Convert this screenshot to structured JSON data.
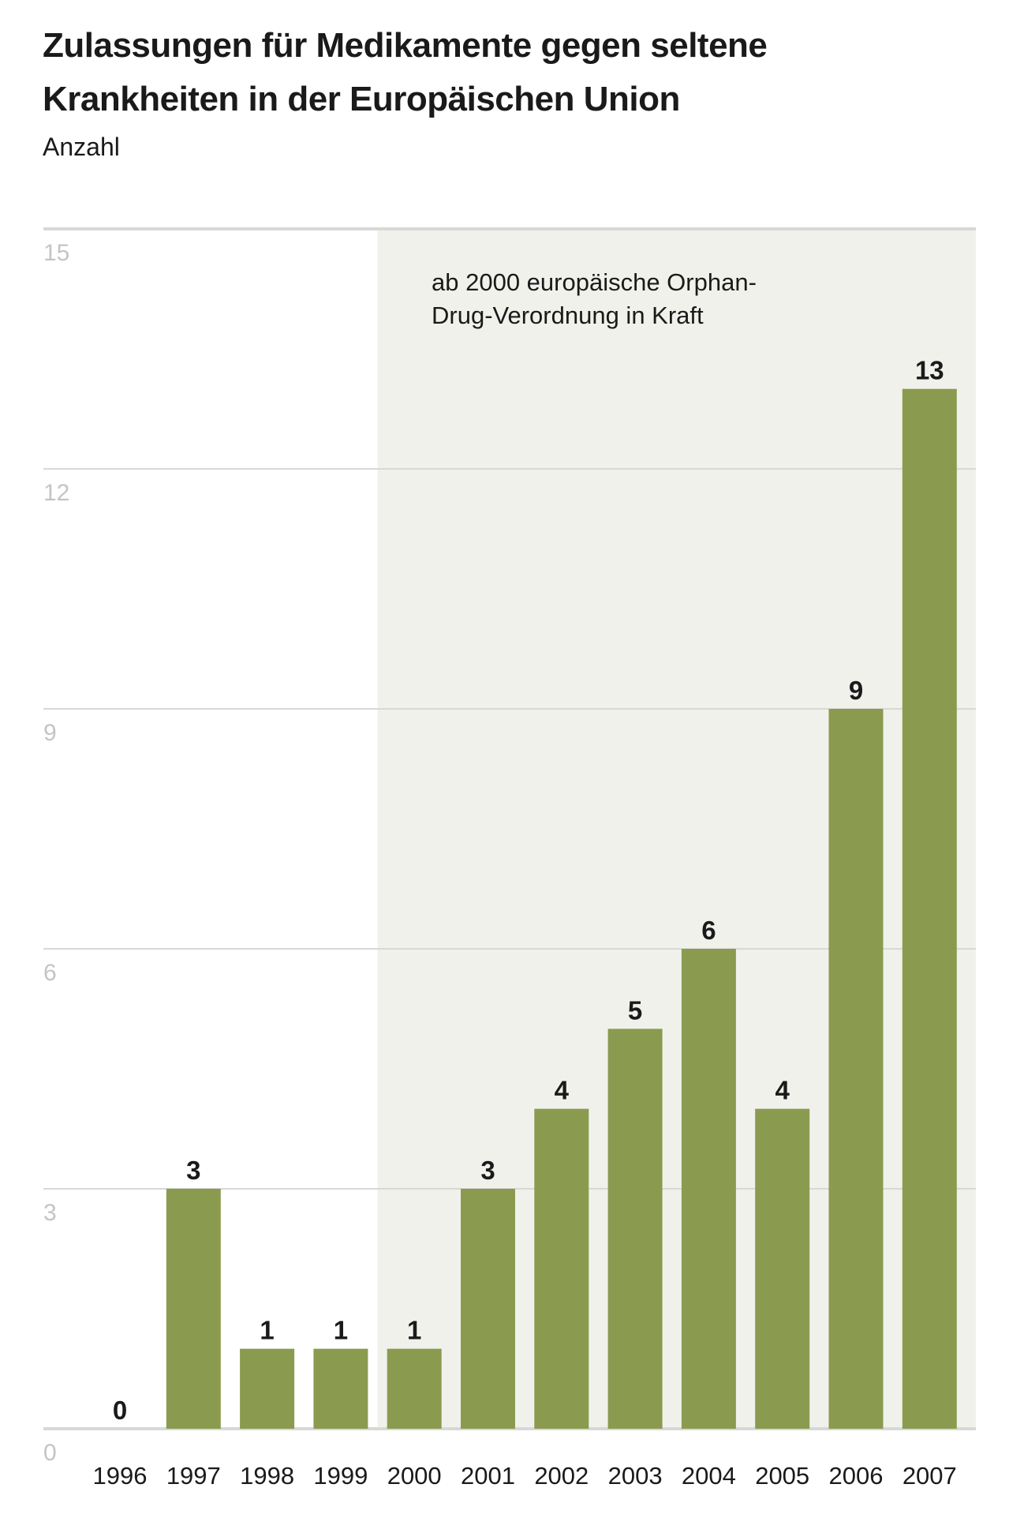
{
  "chart_data": {
    "type": "bar",
    "title_lines": [
      "Zulassungen für Medikamente gegen seltene",
      "Krankheiten in der Europäischen Union"
    ],
    "ylabel": "Anzahl",
    "xlabel": "",
    "categories": [
      "1996",
      "1997",
      "1998",
      "1999",
      "2000",
      "2001",
      "2002",
      "2003",
      "2004",
      "2005",
      "2006",
      "2007"
    ],
    "values": [
      0,
      3,
      1,
      1,
      1,
      3,
      4,
      5,
      6,
      4,
      9,
      13
    ],
    "ylim": [
      0,
      15
    ],
    "yticks": [
      0,
      3,
      6,
      9,
      12,
      15
    ],
    "grid": true,
    "annotation": {
      "lines": [
        "ab 2000 europäische Orphan-",
        "Drug-Verordnung in Kraft"
      ],
      "shaded_from_category": "2000"
    },
    "colors": {
      "bar": "#8a9b50",
      "shade": "#f1f1ec",
      "grid": "#d8d8d8"
    }
  }
}
